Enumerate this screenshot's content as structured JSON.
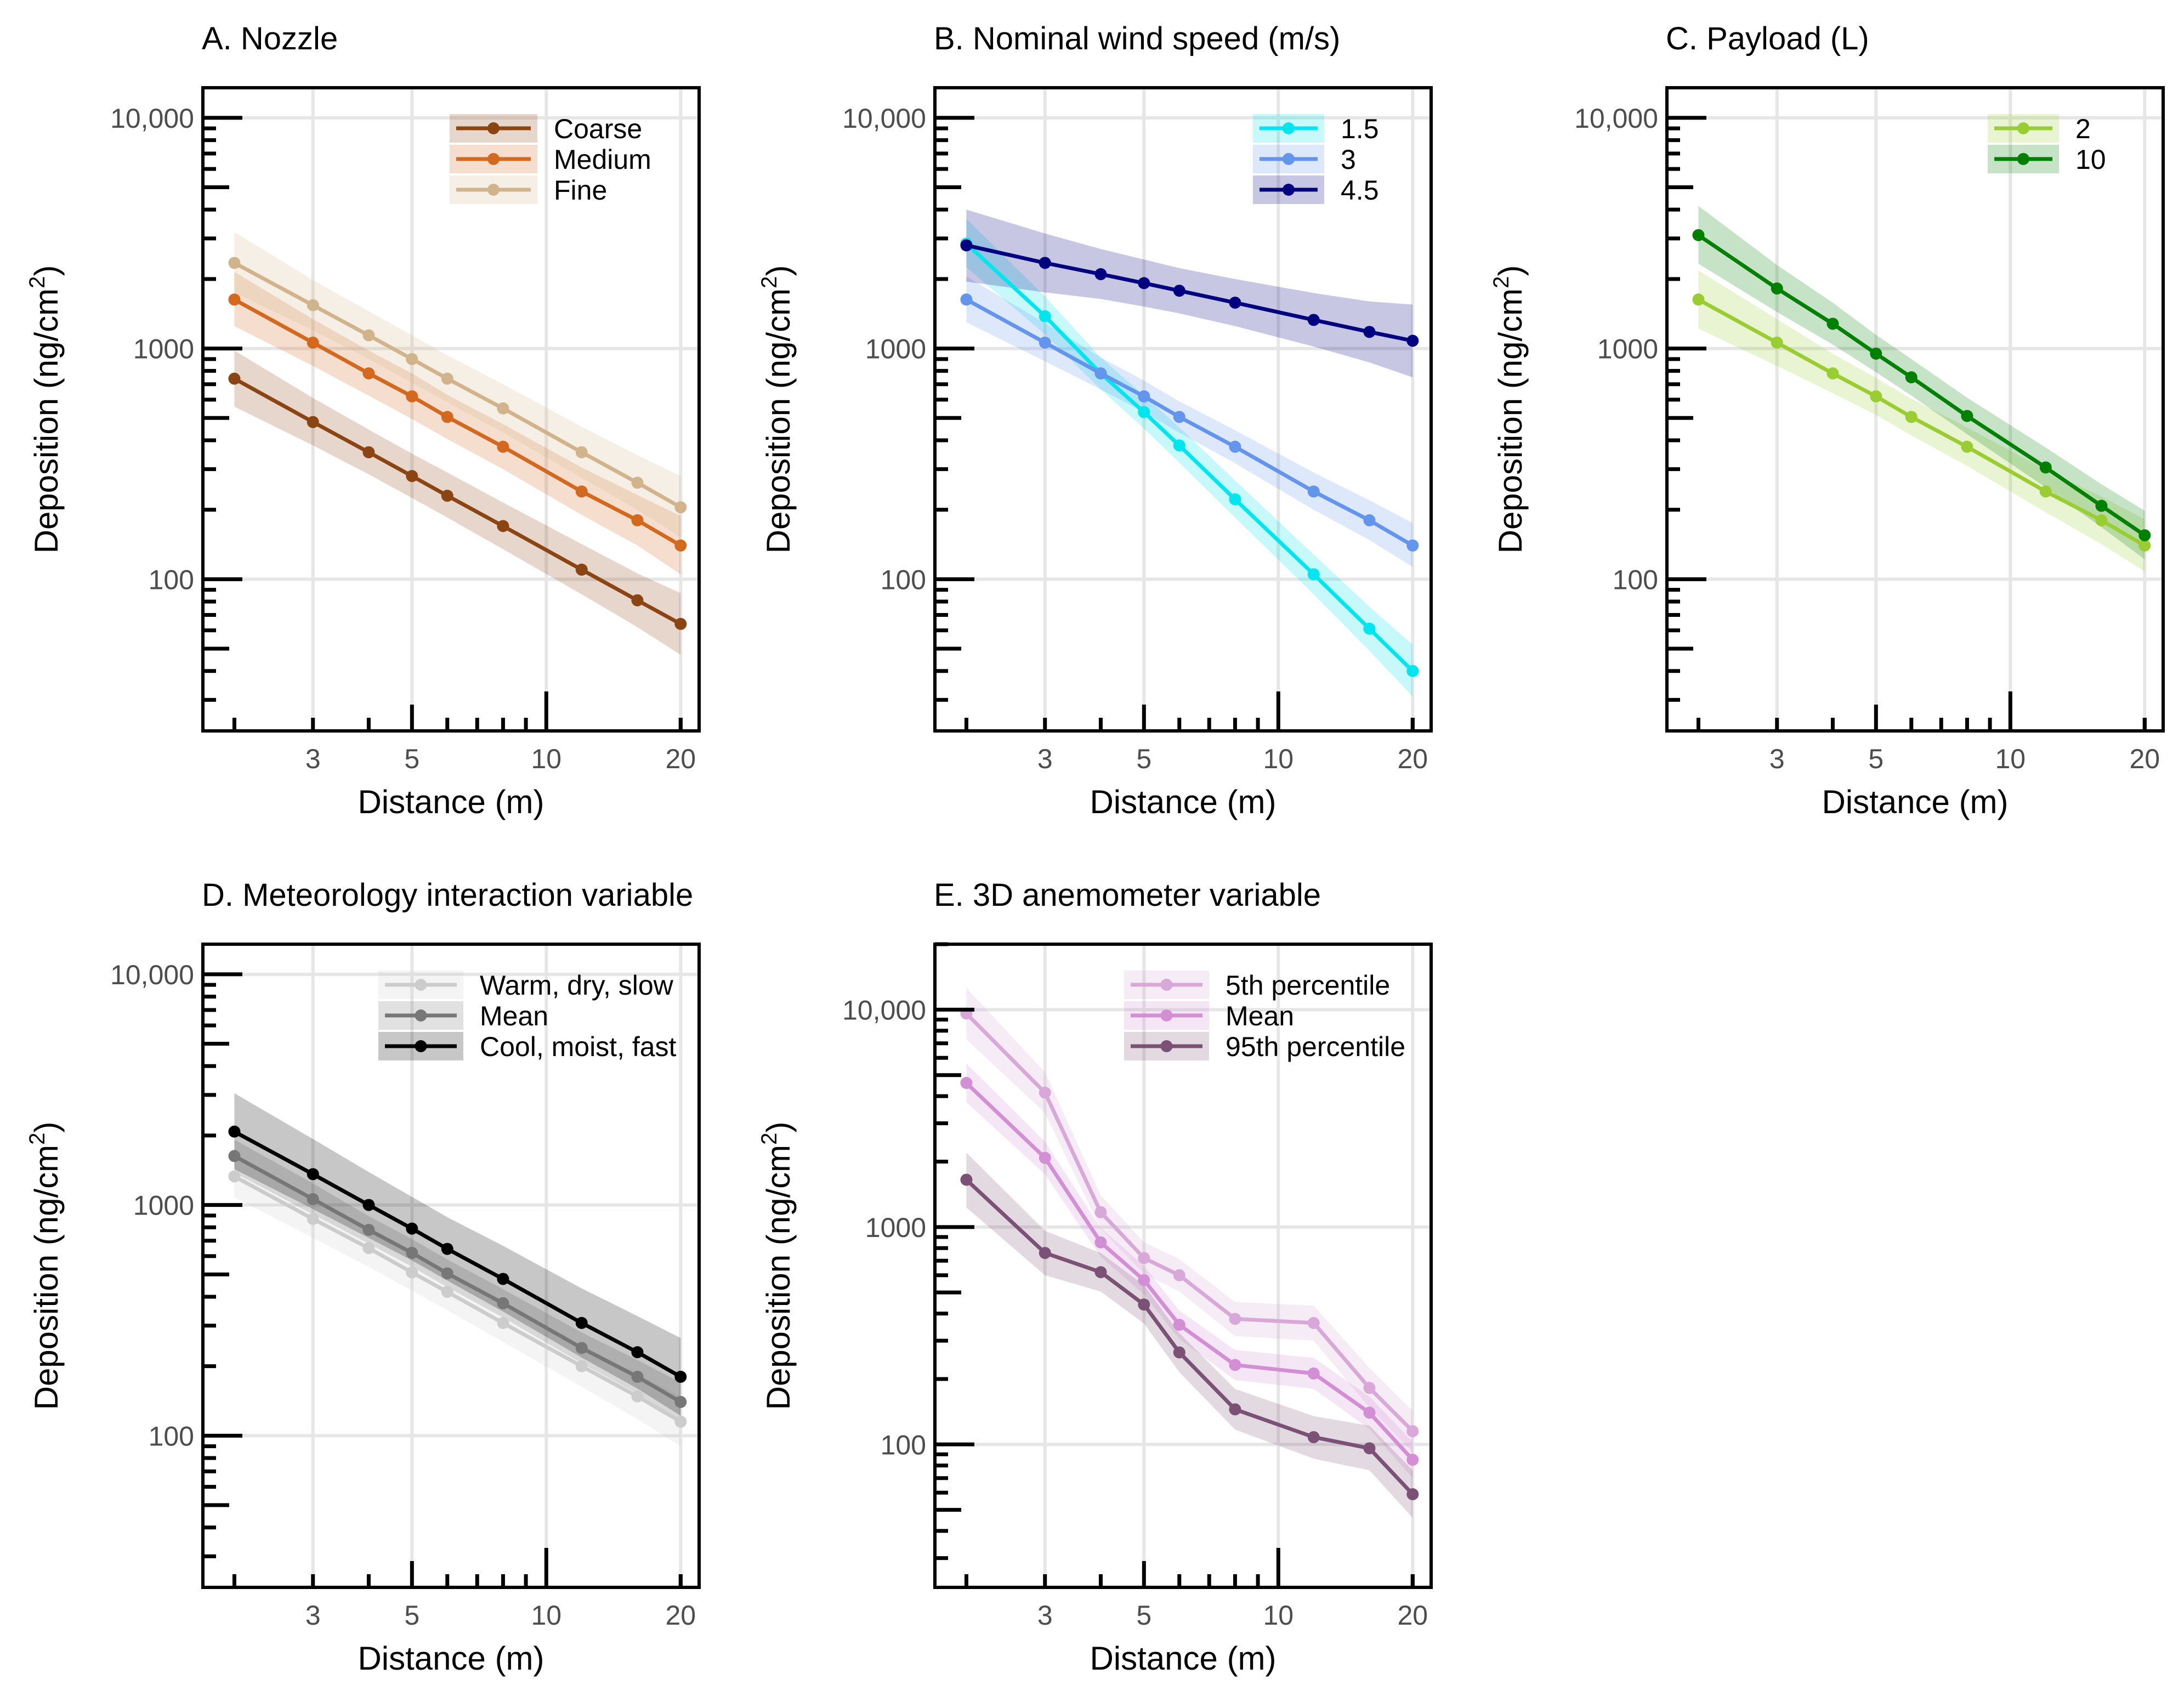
{
  "chart_data": [
    {
      "type": "line",
      "title": "A. Nozzle",
      "xlabel": "Distance (m)",
      "ylabel": "Deposition (ng/cm",
      "ylabel_sup": "2",
      "ylabel_close": ")",
      "x_scale": "log",
      "y_scale": "log",
      "xlim": [
        1.7,
        22
      ],
      "ylim": [
        22,
        13500
      ],
      "x": [
        2,
        3,
        4,
        5,
        6,
        8,
        12,
        16,
        20
      ],
      "x_ticks": [
        {
          "value": 3,
          "label": "3"
        },
        {
          "value": 5,
          "label": "5"
        },
        {
          "value": 10,
          "label": "10"
        },
        {
          "value": 20,
          "label": "20"
        }
      ],
      "y_ticks": [
        {
          "value": 100,
          "label": "100"
        },
        {
          "value": 1000,
          "label": "1000"
        },
        {
          "value": 10000,
          "label": "10,000"
        }
      ],
      "legend_position": "top-right",
      "series": [
        {
          "name": "Coarse",
          "color": "#8b4513",
          "values": [
            740,
            480,
            355,
            280,
            230,
            170,
            110,
            81,
            64
          ],
          "lower": [
            560,
            380,
            285,
            225,
            185,
            135,
            86,
            62,
            47
          ],
          "upper": [
            980,
            610,
            445,
            350,
            290,
            215,
            142,
            106,
            87
          ]
        },
        {
          "name": "Medium",
          "color": "#d2691e",
          "values": [
            1630,
            1060,
            780,
            620,
            505,
            375,
            240,
            180,
            140
          ],
          "lower": [
            1250,
            840,
            625,
            495,
            405,
            300,
            190,
            140,
            105
          ],
          "upper": [
            2150,
            1340,
            980,
            780,
            630,
            470,
            305,
            232,
            188
          ]
        },
        {
          "name": "Fine",
          "color": "#d2b48c",
          "values": [
            2350,
            1540,
            1140,
            900,
            740,
            550,
            355,
            262,
            205
          ],
          "lower": [
            1750,
            1200,
            900,
            710,
            585,
            432,
            275,
            200,
            152
          ],
          "upper": [
            3200,
            1980,
            1450,
            1140,
            935,
            700,
            458,
            345,
            280
          ]
        }
      ]
    },
    {
      "type": "line",
      "title": "B. Nominal wind speed (m/s)",
      "xlabel": "Distance (m)",
      "ylabel": "Deposition (ng/cm",
      "ylabel_sup": "2",
      "ylabel_close": ")",
      "x_scale": "log",
      "y_scale": "log",
      "xlim": [
        1.7,
        22
      ],
      "ylim": [
        22,
        13500
      ],
      "x": [
        2,
        3,
        4,
        5,
        6,
        8,
        12,
        16,
        20
      ],
      "x_ticks": [
        {
          "value": 3,
          "label": "3"
        },
        {
          "value": 5,
          "label": "5"
        },
        {
          "value": 10,
          "label": "10"
        },
        {
          "value": 20,
          "label": "20"
        }
      ],
      "y_ticks": [
        {
          "value": 100,
          "label": "100"
        },
        {
          "value": 1000,
          "label": "1000"
        },
        {
          "value": 10000,
          "label": "10,000"
        }
      ],
      "legend_position": "top-right",
      "series": [
        {
          "name": "1.5",
          "color": "#00e5ee",
          "values": [
            2850,
            1380,
            780,
            530,
            380,
            222,
            105,
            61,
            40
          ],
          "lower": [
            2250,
            1150,
            665,
            450,
            320,
            185,
            86,
            49,
            31
          ],
          "upper": [
            3650,
            1680,
            915,
            625,
            455,
            268,
            128,
            76,
            52
          ]
        },
        {
          "name": "3",
          "color": "#6495ed",
          "values": [
            1630,
            1060,
            780,
            620,
            505,
            375,
            240,
            180,
            140
          ],
          "lower": [
            1300,
            880,
            665,
            530,
            432,
            318,
            200,
            148,
            113
          ],
          "upper": [
            2050,
            1290,
            915,
            725,
            590,
            442,
            290,
            220,
            175
          ]
        },
        {
          "name": "4.5",
          "color": "#000080",
          "values": [
            2800,
            2350,
            2100,
            1920,
            1780,
            1580,
            1330,
            1180,
            1080
          ],
          "lower": [
            1950,
            1750,
            1640,
            1520,
            1420,
            1250,
            1020,
            870,
            750
          ],
          "upper": [
            4000,
            3150,
            2700,
            2430,
            2230,
            2000,
            1740,
            1600,
            1550
          ]
        }
      ]
    },
    {
      "type": "line",
      "title": "C. Payload (L)",
      "xlabel": "Distance (m)",
      "ylabel": "Deposition (ng/cm",
      "ylabel_sup": "2",
      "ylabel_close": ")",
      "x_scale": "log",
      "y_scale": "log",
      "xlim": [
        1.7,
        22
      ],
      "ylim": [
        22,
        13500
      ],
      "x": [
        2,
        3,
        4,
        5,
        6,
        8,
        12,
        16,
        20
      ],
      "x_ticks": [
        {
          "value": 3,
          "label": "3"
        },
        {
          "value": 5,
          "label": "5"
        },
        {
          "value": 10,
          "label": "10"
        },
        {
          "value": 20,
          "label": "20"
        }
      ],
      "y_ticks": [
        {
          "value": 100,
          "label": "100"
        },
        {
          "value": 1000,
          "label": "1000"
        },
        {
          "value": 10000,
          "label": "10,000"
        }
      ],
      "legend_position": "top-right",
      "series": [
        {
          "name": "2",
          "color": "#9acd32",
          "values": [
            1630,
            1060,
            780,
            620,
            505,
            375,
            240,
            180,
            140
          ],
          "lower": [
            1220,
            840,
            640,
            515,
            420,
            310,
            195,
            142,
            108
          ],
          "upper": [
            2180,
            1340,
            950,
            745,
            605,
            455,
            298,
            228,
            182
          ]
        },
        {
          "name": "10",
          "color": "#008000",
          "values": [
            3100,
            1820,
            1280,
            950,
            750,
            510,
            305,
            208,
            155
          ],
          "lower": [
            2330,
            1440,
            1040,
            790,
            625,
            425,
            250,
            168,
            122
          ],
          "upper": [
            4150,
            2300,
            1580,
            1145,
            900,
            612,
            372,
            258,
            198
          ]
        }
      ]
    },
    {
      "type": "line",
      "title": "D. Meteorology interaction variable",
      "xlabel": "Distance (m)",
      "ylabel": "Deposition (ng/cm",
      "ylabel_sup": "2",
      "ylabel_close": ")",
      "x_scale": "log",
      "y_scale": "log",
      "xlim": [
        1.7,
        22
      ],
      "ylim": [
        22,
        13500
      ],
      "x": [
        2,
        3,
        4,
        5,
        6,
        8,
        12,
        16,
        20
      ],
      "x_ticks": [
        {
          "value": 3,
          "label": "3"
        },
        {
          "value": 5,
          "label": "5"
        },
        {
          "value": 10,
          "label": "10"
        },
        {
          "value": 20,
          "label": "20"
        }
      ],
      "y_ticks": [
        {
          "value": 100,
          "label": "100"
        },
        {
          "value": 1000,
          "label": "1000"
        },
        {
          "value": 10000,
          "label": "10,000"
        }
      ],
      "legend_position": "top-right",
      "series": [
        {
          "name": "Warm, dry, slow",
          "color": "#cccccc",
          "values": [
            1330,
            870,
            650,
            510,
            420,
            308,
            200,
            148,
            115
          ],
          "lower": [
            1080,
            720,
            540,
            425,
            350,
            255,
            163,
            118,
            90
          ],
          "upper": [
            1650,
            1060,
            790,
            615,
            505,
            372,
            245,
            185,
            148
          ]
        },
        {
          "name": "Mean",
          "color": "#777777",
          "values": [
            1630,
            1060,
            780,
            620,
            505,
            375,
            240,
            180,
            140
          ],
          "lower": [
            1380,
            910,
            680,
            540,
            440,
            325,
            206,
            152,
            116
          ],
          "upper": [
            1920,
            1240,
            895,
            712,
            580,
            432,
            280,
            213,
            170
          ]
        },
        {
          "name": "Cool, moist, fast",
          "color": "#000000",
          "values": [
            2080,
            1360,
            1000,
            790,
            645,
            478,
            308,
            230,
            180
          ],
          "lower": [
            1430,
            960,
            720,
            575,
            470,
            345,
            218,
            160,
            122
          ],
          "upper": [
            3050,
            1930,
            1390,
            1085,
            885,
            665,
            435,
            330,
            265
          ]
        }
      ]
    },
    {
      "type": "line",
      "title": "E. 3D anemometer variable",
      "xlabel": "Distance (m)",
      "ylabel": "Deposition (ng/cm",
      "ylabel_sup": "2",
      "ylabel_close": ")",
      "x_scale": "log",
      "y_scale": "log",
      "xlim": [
        1.7,
        22
      ],
      "ylim": [
        22,
        20000
      ],
      "x": [
        2,
        3,
        4,
        5,
        6,
        8,
        12,
        16,
        20
      ],
      "x_ticks": [
        {
          "value": 3,
          "label": "3"
        },
        {
          "value": 5,
          "label": "5"
        },
        {
          "value": 10,
          "label": "10"
        },
        {
          "value": 20,
          "label": "20"
        }
      ],
      "y_ticks": [
        {
          "value": 100,
          "label": "100"
        },
        {
          "value": 1000,
          "label": "1000"
        },
        {
          "value": 10000,
          "label": "10,000"
        }
      ],
      "legend_position": "top-right",
      "series": [
        {
          "name": "5th percentile",
          "color": "#d8a9d8",
          "values": [
            9600,
            4150,
            1170,
            720,
            600,
            378,
            362,
            182,
            115
          ],
          "lower": [
            7300,
            3350,
            980,
            610,
            505,
            315,
            300,
            148,
            92
          ],
          "upper": [
            12600,
            5150,
            1400,
            850,
            712,
            452,
            435,
            225,
            143
          ]
        },
        {
          "name": "Mean",
          "color": "#d38fd3",
          "values": [
            4600,
            2080,
            850,
            570,
            355,
            232,
            212,
            140,
            85
          ],
          "lower": [
            3750,
            1750,
            730,
            490,
            305,
            198,
            180,
            118,
            70
          ],
          "upper": [
            5650,
            2470,
            990,
            663,
            413,
            272,
            250,
            166,
            103
          ]
        },
        {
          "name": "95th percentile",
          "color": "#7b5275",
          "values": [
            1650,
            760,
            620,
            440,
            265,
            145,
            108,
            96,
            59
          ],
          "lower": [
            1230,
            600,
            505,
            360,
            215,
            117,
            86,
            76,
            46
          ],
          "upper": [
            2200,
            960,
            760,
            540,
            325,
            180,
            135,
            122,
            76
          ]
        }
      ]
    }
  ]
}
